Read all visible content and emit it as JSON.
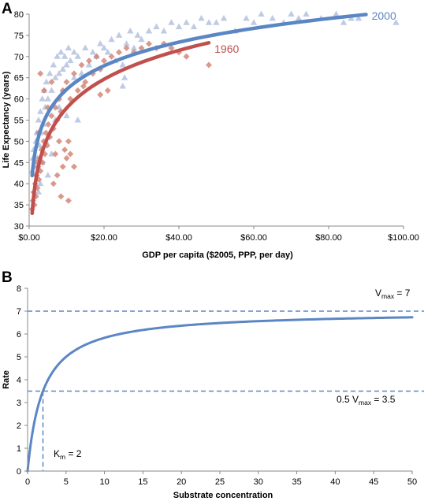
{
  "panels": {
    "a_letter": "A",
    "b_letter": "B"
  },
  "chart_data": [
    {
      "type": "scatter",
      "xlabel": "GDP per capita ($2005, PPP, per day)",
      "ylabel": "Life Expectancy (years)",
      "xlim": [
        0,
        100
      ],
      "ylim": [
        30,
        80
      ],
      "x_ticks": [
        {
          "v": 0,
          "label": "$0.00"
        },
        {
          "v": 20,
          "label": "$20.00"
        },
        {
          "v": 40,
          "label": "$40.00"
        },
        {
          "v": 60,
          "label": "$60.00"
        },
        {
          "v": 80,
          "label": "$80.00"
        },
        {
          "v": 100,
          "label": "$100.00"
        }
      ],
      "y_ticks": [
        30,
        35,
        40,
        45,
        50,
        55,
        60,
        65,
        70,
        75,
        80
      ],
      "grid": false,
      "series": [
        {
          "name": "2000",
          "color": "#5b86c4",
          "point_color": "#a9b8db",
          "marker": "triangle",
          "points": [
            [
              0.8,
              43
            ],
            [
              1.0,
              46
            ],
            [
              1.2,
              48
            ],
            [
              1.5,
              44
            ],
            [
              1.8,
              50
            ],
            [
              2.0,
              52
            ],
            [
              2.2,
              46
            ],
            [
              2.5,
              55
            ],
            [
              2.8,
              49
            ],
            [
              3.0,
              57
            ],
            [
              3.2,
              52
            ],
            [
              3.5,
              60
            ],
            [
              3.8,
              54
            ],
            [
              4.0,
              62
            ],
            [
              4.3,
              58
            ],
            [
              4.6,
              64
            ],
            [
              5.0,
              60
            ],
            [
              5.5,
              66
            ],
            [
              6.0,
              62
            ],
            [
              6.5,
              68
            ],
            [
              7.0,
              65
            ],
            [
              7.5,
              70
            ],
            [
              8.0,
              66
            ],
            [
              8.5,
              71
            ],
            [
              9.0,
              67
            ],
            [
              9.5,
              70
            ],
            [
              10.0,
              68
            ],
            [
              10.5,
              72
            ],
            [
              11.0,
              69
            ],
            [
              12.0,
              71
            ],
            [
              13.0,
              70
            ],
            [
              14.0,
              66
            ],
            [
              15.0,
              72
            ],
            [
              16.0,
              68
            ],
            [
              17.0,
              71
            ],
            [
              18.0,
              70
            ],
            [
              19.0,
              73
            ],
            [
              20.0,
              72
            ],
            [
              21.0,
              71
            ],
            [
              22.0,
              74
            ],
            [
              23.0,
              69
            ],
            [
              24.0,
              75
            ],
            [
              25.0,
              68
            ],
            [
              26.0,
              73
            ],
            [
              27.0,
              76
            ],
            [
              28.0,
              72
            ],
            [
              29.0,
              75
            ],
            [
              30.0,
              74
            ],
            [
              32.0,
              76
            ],
            [
              34.0,
              77
            ],
            [
              36.0,
              76
            ],
            [
              38.0,
              78
            ],
            [
              40.0,
              77
            ],
            [
              42.0,
              78
            ],
            [
              44.0,
              77
            ],
            [
              46.0,
              79
            ],
            [
              48.0,
              78
            ],
            [
              50.0,
              78
            ],
            [
              52.0,
              79
            ],
            [
              55.0,
              76
            ],
            [
              58.0,
              79
            ],
            [
              60.0,
              78
            ],
            [
              62.0,
              80
            ],
            [
              65.0,
              79
            ],
            [
              68.0,
              78
            ],
            [
              70.0,
              80
            ],
            [
              72.0,
              79
            ],
            [
              74.0,
              80
            ],
            [
              78.0,
              79
            ],
            [
              82.0,
              80
            ],
            [
              84.0,
              78
            ],
            [
              86.0,
              79
            ],
            [
              88.0,
              79
            ],
            [
              98.0,
              78
            ],
            [
              13.0,
              55
            ],
            [
              5.0,
              42
            ],
            [
              6.0,
              47
            ],
            [
              25.0,
              63
            ],
            [
              25.5,
              65
            ],
            [
              12.0,
              65
            ],
            [
              8.0,
              58
            ],
            [
              3.0,
              40
            ],
            [
              2.5,
              38
            ],
            [
              3.5,
              45
            ],
            [
              9.0,
              62
            ],
            [
              10.0,
              56
            ],
            [
              4.5,
              50
            ],
            [
              7.0,
              55
            ]
          ]
        },
        {
          "name": "1960",
          "color": "#c0504d",
          "point_color": "#cf8070",
          "marker": "diamond",
          "points": [
            [
              0.8,
              34
            ],
            [
              1.0,
              36
            ],
            [
              1.2,
              38
            ],
            [
              1.4,
              35
            ],
            [
              1.6,
              40
            ],
            [
              1.8,
              37
            ],
            [
              2.0,
              42
            ],
            [
              2.2,
              39
            ],
            [
              2.4,
              44
            ],
            [
              2.6,
              41
            ],
            [
              2.8,
              46
            ],
            [
              3.0,
              43
            ],
            [
              3.3,
              48
            ],
            [
              3.6,
              45
            ],
            [
              3.9,
              50
            ],
            [
              4.2,
              47
            ],
            [
              4.5,
              52
            ],
            [
              4.8,
              49
            ],
            [
              5.1,
              54
            ],
            [
              5.5,
              51
            ],
            [
              6.0,
              56
            ],
            [
              6.5,
              53
            ],
            [
              7.0,
              58
            ],
            [
              7.5,
              55
            ],
            [
              8.0,
              60
            ],
            [
              8.5,
              57
            ],
            [
              9.0,
              62
            ],
            [
              9.5,
              48
            ],
            [
              10.0,
              64
            ],
            [
              10.5,
              50
            ],
            [
              11.0,
              60
            ],
            [
              12.0,
              66
            ],
            [
              13.0,
              62
            ],
            [
              14.0,
              68
            ],
            [
              15.0,
              64
            ],
            [
              16.0,
              69
            ],
            [
              17.0,
              66
            ],
            [
              18.0,
              70
            ],
            [
              19.0,
              67
            ],
            [
              20.0,
              69
            ],
            [
              22.0,
              70
            ],
            [
              24.0,
              71
            ],
            [
              26.0,
              72
            ],
            [
              28.0,
              71
            ],
            [
              30.0,
              72
            ],
            [
              32.0,
              73
            ],
            [
              34.0,
              72
            ],
            [
              36.0,
              73
            ],
            [
              38.0,
              72
            ],
            [
              40.0,
              71
            ],
            [
              42.0,
              70
            ],
            [
              48.0,
              68
            ],
            [
              3.0,
              66
            ],
            [
              4.0,
              62
            ],
            [
              6.0,
              64
            ],
            [
              2.5,
              52
            ],
            [
              5.0,
              58
            ],
            [
              7.0,
              47
            ],
            [
              8.0,
              50
            ],
            [
              9.0,
              44
            ],
            [
              10.0,
              46
            ],
            [
              11.0,
              47
            ],
            [
              12.0,
              44
            ],
            [
              2.2,
              45
            ],
            [
              1.8,
              42
            ],
            [
              10.5,
              36
            ],
            [
              8.5,
              37
            ],
            [
              6.5,
              40
            ],
            [
              7.5,
              42
            ],
            [
              14.5,
              63
            ],
            [
              19.0,
              61
            ],
            [
              21.0,
              62
            ]
          ]
        }
      ],
      "curves": [
        {
          "name": "2000",
          "color": "#5b86c4",
          "x_start": 0.8,
          "x_end": 90,
          "a": 43.7,
          "b": 8.05
        },
        {
          "name": "1960",
          "color": "#c0504d",
          "x_start": 0.8,
          "x_end": 48,
          "a": 35.2,
          "b": 9.83
        }
      ],
      "series_labels": [
        {
          "text": "2000",
          "color": "#5b86c4",
          "x": 91.5,
          "y": 79.6
        },
        {
          "text": "1960",
          "color": "#c0504d",
          "x": 49.5,
          "y": 71.8
        }
      ]
    },
    {
      "type": "line",
      "xlabel": "Substrate concentration",
      "ylabel": "Rate",
      "xlim": [
        0,
        50
      ],
      "ylim": [
        0,
        8
      ],
      "x_ticks": [
        0,
        5,
        10,
        15,
        20,
        25,
        30,
        35,
        40,
        45,
        50
      ],
      "y_ticks": [
        0,
        1,
        2,
        3,
        4,
        5,
        6,
        7,
        8
      ],
      "grid": false,
      "series": [
        {
          "name": "",
          "color": "#5b86c4",
          "equation": "Vmax * S / (Km + S)",
          "Vmax": 7,
          "Km": 2
        }
      ],
      "reference_lines": [
        {
          "kind": "horizontal",
          "y": 7
        },
        {
          "kind": "horizontal",
          "y": 3.5
        },
        {
          "kind": "vertical",
          "x": 2
        }
      ],
      "annotations": {
        "vmax": {
          "prefix": "V",
          "sub": "max",
          "suffix": " = 7"
        },
        "half_vmax": {
          "prefix": "0.5 V",
          "sub": "max",
          "suffix": " = 3.5"
        },
        "km": {
          "prefix": "K",
          "sub": "m",
          "suffix": " = 2"
        }
      }
    }
  ]
}
